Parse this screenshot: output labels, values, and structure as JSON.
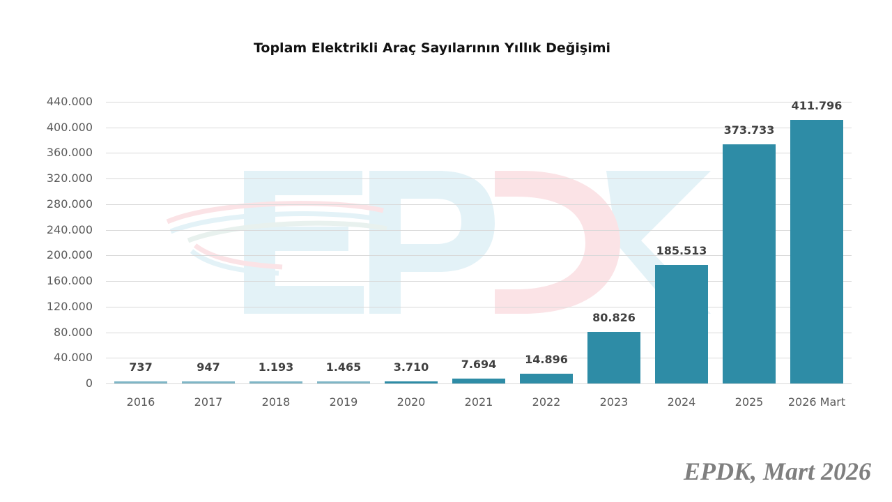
{
  "title": "Toplam Elektrikli Araç Sayılarının Yıllık Değişimi",
  "source": "EPDK, Mart 2026",
  "watermark": "EPDK",
  "colors": {
    "bar": "#2e8ca6",
    "grid": "#d9d9d9",
    "watermark_blue": "#e3f2f7",
    "watermark_red": "#fbe3e6"
  },
  "y_ticks": [
    "440.000",
    "400.000",
    "360.000",
    "320.000",
    "280.000",
    "240.000",
    "200.000",
    "160.000",
    "120.000",
    "80.000",
    "40.000",
    "0"
  ],
  "bars": [
    {
      "category": "2016",
      "label": "737"
    },
    {
      "category": "2017",
      "label": "947"
    },
    {
      "category": "2018",
      "label": "1.193"
    },
    {
      "category": "2019",
      "label": "1.465"
    },
    {
      "category": "2020",
      "label": "3.710"
    },
    {
      "category": "2021",
      "label": "7.694"
    },
    {
      "category": "2022",
      "label": "14.896"
    },
    {
      "category": "2023",
      "label": "80.826"
    },
    {
      "category": "2024",
      "label": "185.513"
    },
    {
      "category": "2025",
      "label": "373.733"
    },
    {
      "category": "2026 Mart",
      "label": "411.796"
    }
  ],
  "chart_data": {
    "type": "bar",
    "title": "Toplam Elektrikli Araç Sayılarının Yıllık Değişimi",
    "categories": [
      "2016",
      "2017",
      "2018",
      "2019",
      "2020",
      "2021",
      "2022",
      "2023",
      "2024",
      "2025",
      "2026 Mart"
    ],
    "values": [
      737,
      947,
      1193,
      1465,
      3710,
      7694,
      14896,
      80826,
      185513,
      373733,
      411796
    ],
    "xlabel": "",
    "ylabel": "",
    "ylim": [
      0,
      440000
    ],
    "y_tick_step": 40000,
    "grid": true,
    "legend": "none",
    "data_labels": true,
    "annotations": [
      "EPDK, Mart 2026"
    ]
  }
}
